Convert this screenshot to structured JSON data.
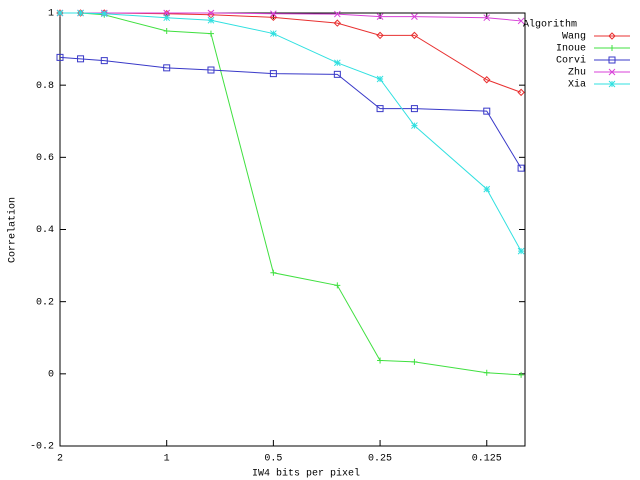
{
  "chart_data": {
    "type": "line",
    "xlabel": "IW4 bits per pixel",
    "ylabel": "Correlation",
    "legend_title": "Algorithm",
    "legend": "top-right",
    "xscale": "log",
    "xlim": [
      2,
      0.0975
    ],
    "xticks": [
      2,
      1,
      0.5,
      0.25,
      0.125
    ],
    "ylim": [
      -0.2,
      1
    ],
    "yticks": [
      -0.2,
      0,
      0.2,
      0.4,
      0.6,
      0.8,
      1
    ],
    "x": [
      2,
      1.75,
      1.5,
      1,
      0.75,
      0.5,
      0.33,
      0.25,
      0.2,
      0.125,
      0.1
    ],
    "series": [
      {
        "name": "Wang",
        "color": "#e83030",
        "marker": "diamond",
        "values": [
          1,
          1,
          1,
          0.998,
          0.995,
          0.988,
          0.972,
          0.938,
          0.938,
          0.815,
          0.78
        ]
      },
      {
        "name": "Inoue",
        "color": "#40e040",
        "marker": "plus",
        "values": [
          1,
          1,
          0.995,
          0.95,
          0.943,
          0.28,
          0.245,
          0.037,
          0.033,
          0.003,
          -0.003
        ]
      },
      {
        "name": "Corvi",
        "color": "#3838c8",
        "marker": "square",
        "values": [
          0.877,
          0.873,
          0.868,
          0.848,
          0.842,
          0.832,
          0.83,
          0.735,
          0.735,
          0.728,
          0.57
        ]
      },
      {
        "name": "Zhu",
        "color": "#d840d8",
        "marker": "cross",
        "values": [
          1,
          1,
          1,
          1,
          1,
          0.998,
          0.997,
          0.99,
          0.99,
          0.987,
          0.978
        ]
      },
      {
        "name": "Xia",
        "color": "#30e0e0",
        "marker": "star",
        "values": [
          1,
          1,
          0.998,
          0.987,
          0.98,
          0.943,
          0.862,
          0.817,
          0.688,
          0.512,
          0.34
        ]
      }
    ]
  }
}
